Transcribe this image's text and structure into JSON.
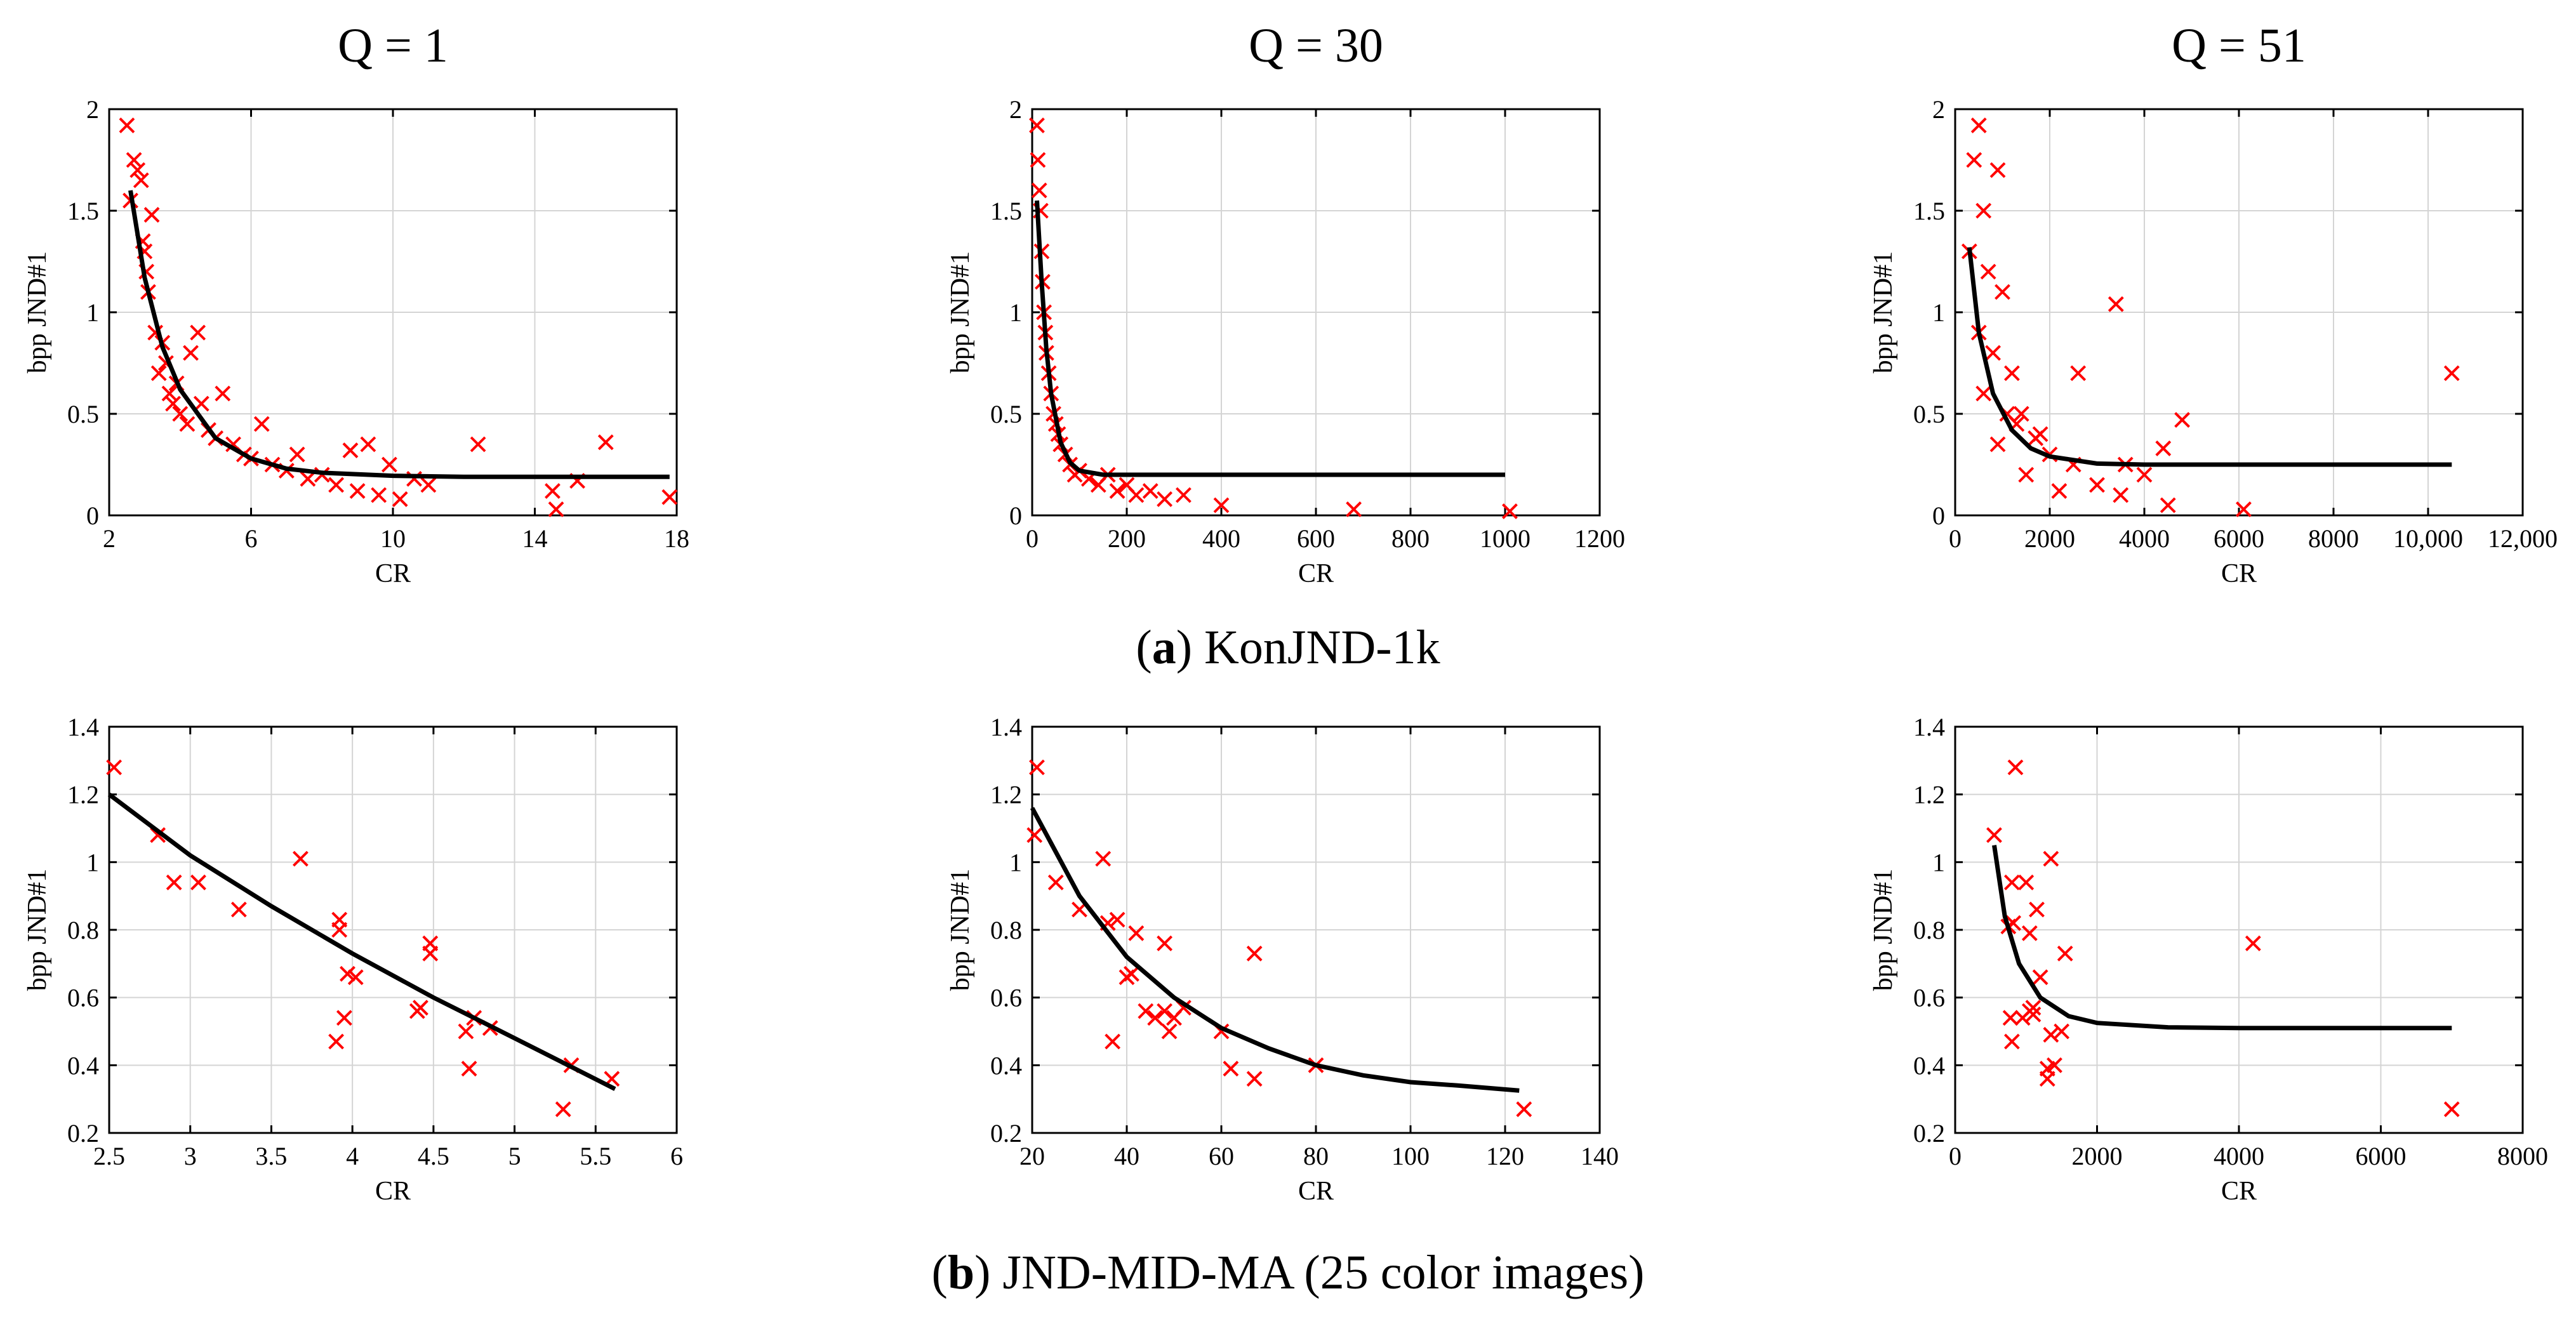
{
  "captions": {
    "a_letter": "a",
    "a_text": "KonJND-1k",
    "b_letter": "b",
    "b_text": "JND-MID-MA (25 color images)"
  },
  "chart_data": [
    {
      "type": "scatter",
      "title": "Q = 1",
      "xlabel": "CR",
      "ylabel": "bpp JND#1",
      "xlim": [
        2,
        18
      ],
      "ylim": [
        0,
        2
      ],
      "xticks": [
        2,
        6,
        10,
        14,
        18
      ],
      "xtick_labels": [
        "2",
        "6",
        "10",
        "14",
        "18"
      ],
      "yticks": [
        0,
        0.5,
        1,
        1.5,
        2
      ],
      "ytick_labels": [
        "0",
        "0.5",
        "1",
        "1.5",
        "2"
      ],
      "grid": true,
      "marker_color": "#ff0000",
      "fit_color": "#000000",
      "series": [
        {
          "points": [
            [
              2.5,
              1.92
            ],
            [
              2.6,
              1.55
            ],
            [
              2.7,
              1.75
            ],
            [
              2.8,
              1.7
            ],
            [
              2.9,
              1.65
            ],
            [
              2.95,
              1.35
            ],
            [
              3.0,
              1.3
            ],
            [
              3.05,
              1.2
            ],
            [
              3.2,
              1.48
            ],
            [
              3.1,
              1.1
            ],
            [
              3.3,
              0.9
            ],
            [
              3.4,
              0.7
            ],
            [
              3.5,
              0.85
            ],
            [
              3.6,
              0.75
            ],
            [
              3.7,
              0.6
            ],
            [
              3.8,
              0.55
            ],
            [
              3.9,
              0.65
            ],
            [
              4.0,
              0.5
            ],
            [
              4.2,
              0.45
            ],
            [
              4.3,
              0.8
            ],
            [
              4.5,
              0.9
            ],
            [
              4.6,
              0.55
            ],
            [
              4.8,
              0.42
            ],
            [
              5.0,
              0.38
            ],
            [
              5.2,
              0.6
            ],
            [
              5.5,
              0.35
            ],
            [
              5.8,
              0.3
            ],
            [
              6.0,
              0.28
            ],
            [
              6.3,
              0.45
            ],
            [
              6.6,
              0.25
            ],
            [
              7.0,
              0.22
            ],
            [
              7.3,
              0.3
            ],
            [
              7.6,
              0.18
            ],
            [
              8.0,
              0.2
            ],
            [
              8.4,
              0.15
            ],
            [
              8.8,
              0.32
            ],
            [
              9.0,
              0.12
            ],
            [
              9.3,
              0.35
            ],
            [
              9.6,
              0.1
            ],
            [
              9.9,
              0.25
            ],
            [
              10.2,
              0.08
            ],
            [
              10.6,
              0.18
            ],
            [
              11.0,
              0.15
            ],
            [
              12.4,
              0.35
            ],
            [
              14.5,
              0.12
            ],
            [
              14.6,
              0.03
            ],
            [
              15.2,
              0.17
            ],
            [
              16.0,
              0.36
            ],
            [
              17.8,
              0.09
            ]
          ]
        }
      ],
      "fit": {
        "x": [
          2.6,
          3.0,
          3.5,
          4.0,
          5.0,
          6.0,
          7.0,
          8.0,
          10.0,
          12.0,
          14.0,
          16.0,
          17.8
        ],
        "y": [
          1.6,
          1.17,
          0.83,
          0.62,
          0.38,
          0.28,
          0.23,
          0.21,
          0.195,
          0.19,
          0.19,
          0.19,
          0.19
        ]
      }
    },
    {
      "type": "scatter",
      "title": "Q = 30",
      "xlabel": "CR",
      "ylabel": "bpp JND#1",
      "xlim": [
        0,
        1200
      ],
      "ylim": [
        0,
        2
      ],
      "xticks": [
        0,
        200,
        400,
        600,
        800,
        1000,
        1200
      ],
      "xtick_labels": [
        "0",
        "200",
        "400",
        "600",
        "800",
        "1000",
        "1200"
      ],
      "yticks": [
        0,
        0.5,
        1,
        1.5,
        2
      ],
      "ytick_labels": [
        "0",
        "0.5",
        "1",
        "1.5",
        "2"
      ],
      "grid": true,
      "marker_color": "#ff0000",
      "fit_color": "#000000",
      "series": [
        {
          "points": [
            [
              10,
              1.92
            ],
            [
              12,
              1.75
            ],
            [
              15,
              1.6
            ],
            [
              18,
              1.5
            ],
            [
              20,
              1.3
            ],
            [
              22,
              1.15
            ],
            [
              25,
              1.0
            ],
            [
              28,
              0.9
            ],
            [
              30,
              0.8
            ],
            [
              35,
              0.7
            ],
            [
              40,
              0.6
            ],
            [
              45,
              0.5
            ],
            [
              50,
              0.45
            ],
            [
              55,
              0.4
            ],
            [
              60,
              0.35
            ],
            [
              70,
              0.3
            ],
            [
              80,
              0.25
            ],
            [
              90,
              0.2
            ],
            [
              100,
              0.22
            ],
            [
              120,
              0.18
            ],
            [
              140,
              0.15
            ],
            [
              160,
              0.2
            ],
            [
              180,
              0.12
            ],
            [
              200,
              0.15
            ],
            [
              220,
              0.1
            ],
            [
              250,
              0.12
            ],
            [
              280,
              0.08
            ],
            [
              320,
              0.1
            ],
            [
              400,
              0.05
            ],
            [
              680,
              0.03
            ],
            [
              1010,
              0.02
            ]
          ]
        }
      ],
      "fit": {
        "x": [
          10,
          20,
          30,
          40,
          60,
          80,
          100,
          150,
          200,
          400,
          600,
          800,
          1000
        ],
        "y": [
          1.55,
          1.15,
          0.82,
          0.6,
          0.36,
          0.26,
          0.22,
          0.2,
          0.2,
          0.2,
          0.2,
          0.2,
          0.2
        ]
      }
    },
    {
      "type": "scatter",
      "title": "Q = 51",
      "xlabel": "CR",
      "ylabel": "bpp JND#1",
      "xlim": [
        0,
        12000
      ],
      "ylim": [
        0,
        2
      ],
      "xticks": [
        0,
        2000,
        4000,
        6000,
        8000,
        10000,
        12000
      ],
      "xtick_labels": [
        "0",
        "2000",
        "4000",
        "6000",
        "8000",
        "10,000",
        "12,000"
      ],
      "yticks": [
        0,
        0.5,
        1,
        1.5,
        2
      ],
      "ytick_labels": [
        "0",
        "0.5",
        "1",
        "1.5",
        "2"
      ],
      "grid": true,
      "marker_color": "#ff0000",
      "fit_color": "#000000",
      "series": [
        {
          "points": [
            [
              500,
              1.92
            ],
            [
              400,
              1.75
            ],
            [
              600,
              1.5
            ],
            [
              900,
              1.7
            ],
            [
              300,
              1.3
            ],
            [
              700,
              1.2
            ],
            [
              1000,
              1.1
            ],
            [
              500,
              0.9
            ],
            [
              800,
              0.8
            ],
            [
              1200,
              0.7
            ],
            [
              600,
              0.6
            ],
            [
              1400,
              0.5
            ],
            [
              1800,
              0.4
            ],
            [
              900,
              0.35
            ],
            [
              2000,
              0.3
            ],
            [
              2500,
              0.25
            ],
            [
              1500,
              0.2
            ],
            [
              3000,
              0.15
            ],
            [
              2200,
              0.12
            ],
            [
              3500,
              0.1
            ],
            [
              1100,
              0.5
            ],
            [
              1300,
              0.45
            ],
            [
              1700,
              0.38
            ],
            [
              2600,
              0.7
            ],
            [
              3400,
              1.04
            ],
            [
              3600,
              0.25
            ],
            [
              4000,
              0.2
            ],
            [
              4400,
              0.33
            ],
            [
              4800,
              0.47
            ],
            [
              4500,
              0.05
            ],
            [
              6100,
              0.03
            ],
            [
              10500,
              0.7
            ]
          ]
        }
      ],
      "fit": {
        "x": [
          300,
          500,
          800,
          1200,
          1600,
          2000,
          3000,
          4000,
          6000,
          8000,
          10500
        ],
        "y": [
          1.32,
          0.9,
          0.6,
          0.42,
          0.33,
          0.29,
          0.255,
          0.25,
          0.25,
          0.25,
          0.25
        ]
      }
    },
    {
      "type": "scatter",
      "xlabel": "CR",
      "ylabel": "bpp JND#1",
      "xlim": [
        2.5,
        6
      ],
      "ylim": [
        0.2,
        1.4
      ],
      "xticks": [
        2.5,
        3,
        3.5,
        4,
        4.5,
        5,
        5.5,
        6
      ],
      "xtick_labels": [
        "2.5",
        "3",
        "3.5",
        "4",
        "4.5",
        "5",
        "5.5",
        "6"
      ],
      "yticks": [
        0.2,
        0.4,
        0.6,
        0.8,
        1.0,
        1.2,
        1.4
      ],
      "ytick_labels": [
        "0.2",
        "0.4",
        "0.6",
        "0.8",
        "1",
        "1.2",
        "1.4"
      ],
      "grid": true,
      "marker_color": "#ff0000",
      "fit_color": "#000000",
      "series": [
        {
          "points": [
            [
              2.53,
              1.28
            ],
            [
              2.8,
              1.08
            ],
            [
              2.9,
              0.94
            ],
            [
              3.05,
              0.94
            ],
            [
              3.3,
              0.86
            ],
            [
              3.68,
              1.01
            ],
            [
              3.9,
              0.47
            ],
            [
              3.92,
              0.83
            ],
            [
              3.92,
              0.8
            ],
            [
              3.95,
              0.54
            ],
            [
              3.97,
              0.67
            ],
            [
              4.02,
              0.66
            ],
            [
              4.4,
              0.56
            ],
            [
              4.42,
              0.57
            ],
            [
              4.48,
              0.76
            ],
            [
              4.48,
              0.73
            ],
            [
              4.7,
              0.5
            ],
            [
              4.72,
              0.39
            ],
            [
              4.75,
              0.54
            ],
            [
              4.85,
              0.51
            ],
            [
              5.3,
              0.27
            ],
            [
              5.35,
              0.4
            ],
            [
              5.6,
              0.36
            ]
          ]
        }
      ],
      "fit": {
        "x": [
          2.5,
          3.0,
          3.5,
          4.0,
          4.5,
          5.0,
          5.62
        ],
        "y": [
          1.2,
          1.02,
          0.87,
          0.73,
          0.6,
          0.48,
          0.33
        ]
      }
    },
    {
      "type": "scatter",
      "xlabel": "CR",
      "ylabel": "bpp JND#1",
      "xlim": [
        20,
        140
      ],
      "ylim": [
        0.2,
        1.4
      ],
      "xticks": [
        20,
        40,
        60,
        80,
        100,
        120,
        140
      ],
      "xtick_labels": [
        "20",
        "40",
        "60",
        "80",
        "100",
        "120",
        "140"
      ],
      "yticks": [
        0.2,
        0.4,
        0.6,
        0.8,
        1.0,
        1.2,
        1.4
      ],
      "ytick_labels": [
        "0.2",
        "0.4",
        "0.6",
        "0.8",
        "1",
        "1.2",
        "1.4"
      ],
      "grid": true,
      "marker_color": "#ff0000",
      "fit_color": "#000000",
      "series": [
        {
          "points": [
            [
              21,
              1.28
            ],
            [
              20.5,
              1.08
            ],
            [
              25,
              0.94
            ],
            [
              30,
              0.86
            ],
            [
              35,
              1.01
            ],
            [
              36,
              0.82
            ],
            [
              37,
              0.47
            ],
            [
              38,
              0.83
            ],
            [
              40,
              0.66
            ],
            [
              41,
              0.67
            ],
            [
              42,
              0.79
            ],
            [
              44,
              0.56
            ],
            [
              46,
              0.54
            ],
            [
              48,
              0.56
            ],
            [
              48,
              0.76
            ],
            [
              49,
              0.5
            ],
            [
              50,
              0.54
            ],
            [
              52,
              0.57
            ],
            [
              60,
              0.5
            ],
            [
              62,
              0.39
            ],
            [
              67,
              0.36
            ],
            [
              67,
              0.73
            ],
            [
              80,
              0.4
            ],
            [
              124,
              0.27
            ]
          ]
        }
      ],
      "fit": {
        "x": [
          20,
          30,
          40,
          50,
          60,
          70,
          80,
          90,
          100,
          110,
          123
        ],
        "y": [
          1.16,
          0.9,
          0.72,
          0.6,
          0.51,
          0.45,
          0.4,
          0.37,
          0.35,
          0.34,
          0.325
        ]
      }
    },
    {
      "type": "scatter",
      "xlabel": "CR",
      "ylabel": "bpp JND#1",
      "xlim": [
        0,
        8000
      ],
      "ylim": [
        0.2,
        1.4
      ],
      "xticks": [
        0,
        2000,
        4000,
        6000,
        8000
      ],
      "xtick_labels": [
        "0",
        "2000",
        "4000",
        "6000",
        "8000"
      ],
      "yticks": [
        0.2,
        0.4,
        0.6,
        0.8,
        1.0,
        1.2,
        1.4
      ],
      "ytick_labels": [
        "0.2",
        "0.4",
        "0.6",
        "0.8",
        "1",
        "1.2",
        "1.4"
      ],
      "grid": true,
      "marker_color": "#ff0000",
      "fit_color": "#000000",
      "series": [
        {
          "points": [
            [
              550,
              1.08
            ],
            [
              750,
              0.81
            ],
            [
              780,
              0.54
            ],
            [
              800,
              0.47
            ],
            [
              800,
              0.94
            ],
            [
              820,
              0.82
            ],
            [
              850,
              1.28
            ],
            [
              950,
              0.54
            ],
            [
              1000,
              0.94
            ],
            [
              1050,
              0.56
            ],
            [
              1050,
              0.79
            ],
            [
              1100,
              0.57
            ],
            [
              1100,
              0.55
            ],
            [
              1150,
              0.86
            ],
            [
              1200,
              0.66
            ],
            [
              1300,
              0.39
            ],
            [
              1300,
              0.36
            ],
            [
              1350,
              0.49
            ],
            [
              1350,
              1.01
            ],
            [
              1400,
              0.4
            ],
            [
              1500,
              0.5
            ],
            [
              1550,
              0.73
            ],
            [
              4200,
              0.76
            ],
            [
              7000,
              0.27
            ]
          ]
        }
      ],
      "fit": {
        "x": [
          550,
          700,
          900,
          1200,
          1600,
          2000,
          3000,
          4000,
          5000,
          6000,
          7000
        ],
        "y": [
          1.05,
          0.84,
          0.7,
          0.6,
          0.545,
          0.525,
          0.512,
          0.51,
          0.51,
          0.51,
          0.51
        ]
      }
    }
  ]
}
